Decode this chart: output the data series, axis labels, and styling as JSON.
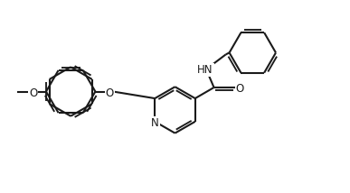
{
  "bg_color": "#ffffff",
  "line_color": "#1a1a1a",
  "line_width": 1.5,
  "figsize": [
    3.87,
    2.14
  ],
  "dpi": 100,
  "xlim": [
    0,
    10.2
  ],
  "ylim": [
    0,
    5.35
  ]
}
